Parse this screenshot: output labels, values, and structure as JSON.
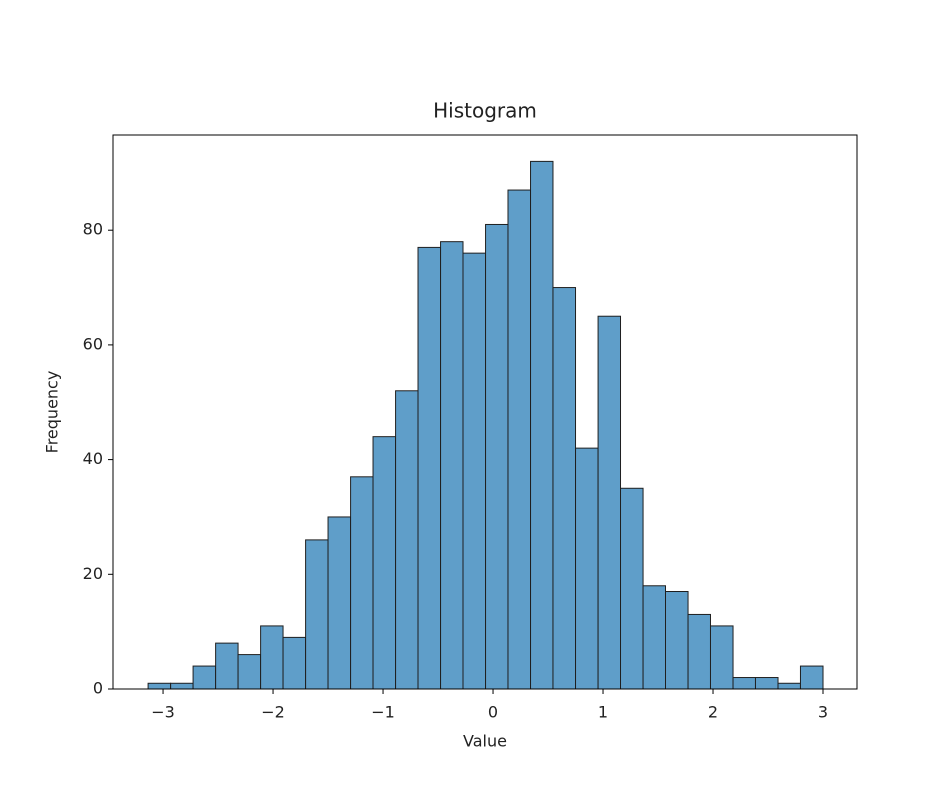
{
  "chart_data": {
    "type": "histogram",
    "title": "Histogram",
    "x_label": "Value",
    "y_label": "Frequency",
    "bins": [
      -3.136,
      -2.931,
      -2.727,
      -2.522,
      -2.318,
      -2.113,
      -1.909,
      -1.704,
      -1.5,
      -1.295,
      -1.091,
      -0.886,
      -0.682,
      -0.477,
      -0.273,
      -0.068,
      0.136,
      0.341,
      0.545,
      0.75,
      0.955,
      1.159,
      1.364,
      1.568,
      1.773,
      1.977,
      2.182,
      2.386,
      2.591,
      2.795,
      3.0
    ],
    "values": [
      1,
      1,
      4,
      8,
      6,
      11,
      9,
      26,
      30,
      37,
      44,
      52,
      77,
      78,
      76,
      81,
      87,
      92,
      70,
      42,
      65,
      35,
      18,
      17,
      13,
      11,
      2,
      2,
      1,
      4
    ],
    "color": "#5f9ec9",
    "edgecolor": "#1f1f1f",
    "xlim": [
      -3.455,
      3.309
    ],
    "ylim": [
      0,
      96.6
    ],
    "xticks": [
      {
        "value": -3,
        "label": "−3"
      },
      {
        "value": -2,
        "label": "−2"
      },
      {
        "value": -1,
        "label": "−1"
      },
      0,
      1,
      2,
      3
    ],
    "yticks": [
      0,
      20,
      40,
      60,
      80
    ]
  }
}
